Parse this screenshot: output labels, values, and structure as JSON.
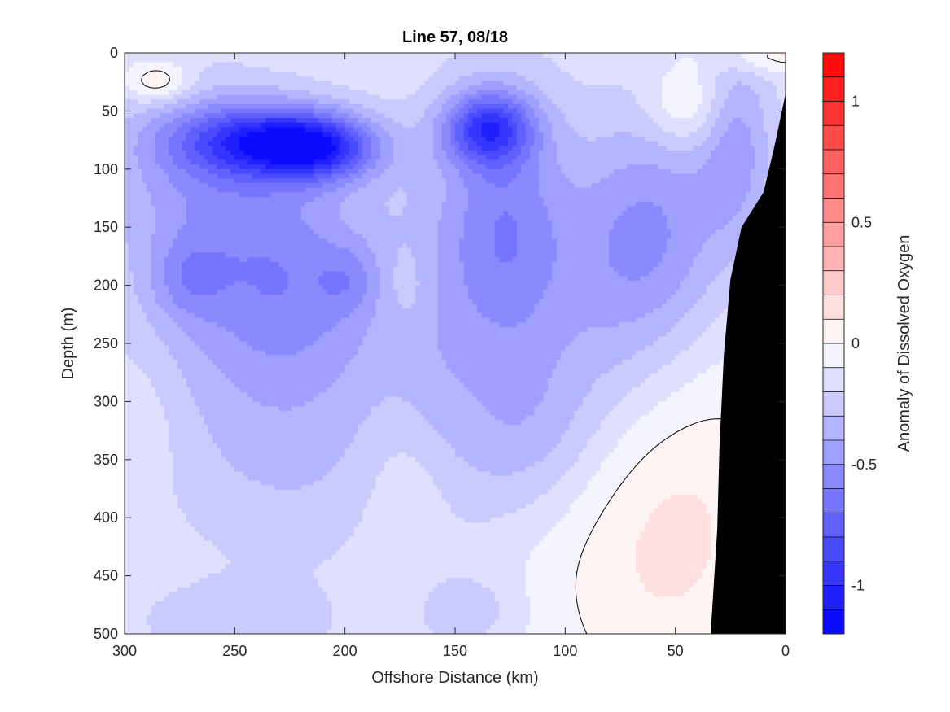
{
  "chart_data": {
    "type": "heatmap",
    "title": "Line 57, 08/18",
    "xlabel": "Offshore Distance (km)",
    "ylabel": "Depth (m)",
    "colorbar_label": "Anomaly of Dissolved Oxygen",
    "xlim": [
      300,
      0
    ],
    "ylim": [
      500,
      0
    ],
    "x_direction": "reversed",
    "y_direction": "reversed",
    "x_ticks": [
      300,
      250,
      200,
      150,
      100,
      50,
      0
    ],
    "y_ticks": [
      0,
      50,
      100,
      150,
      200,
      250,
      300,
      350,
      400,
      450,
      500
    ],
    "colorbar_range": [
      -1.2,
      1.2
    ],
    "colorbar_step": 0.1,
    "colorbar_ticks": [
      -1,
      -0.5,
      0,
      0.5,
      1
    ],
    "colormap": {
      "negative": "#0000ff",
      "zero": "#ffffff",
      "positive": "#ff0000"
    },
    "zero_contour_color": "#000000",
    "bathymetry_color": "#000000",
    "bathymetry": [
      [
        0,
        35
      ],
      [
        5,
        80
      ],
      [
        10,
        120
      ],
      [
        20,
        150
      ],
      [
        25,
        195
      ],
      [
        28,
        260
      ],
      [
        30,
        340
      ],
      [
        31,
        410
      ],
      [
        33,
        470
      ],
      [
        34,
        500
      ]
    ],
    "anomaly_features": [
      {
        "x": 240,
        "y": 75,
        "min_value": -1.05
      },
      {
        "x": 215,
        "y": 80,
        "min_value": -1.05
      },
      {
        "x": 135,
        "y": 65,
        "min_value": -1.05
      },
      {
        "x": 25,
        "y": 15,
        "min_value": -0.45
      },
      {
        "x": 270,
        "y": 180,
        "min_value": -0.55
      },
      {
        "x": 195,
        "y": 190,
        "min_value": -0.5
      },
      {
        "x": 30,
        "y": 420,
        "min_value": 0.05
      },
      {
        "x": 10,
        "y": 5,
        "max_value": 0.15
      },
      {
        "x": 285,
        "y": 25,
        "max_value": 0.12
      }
    ]
  }
}
